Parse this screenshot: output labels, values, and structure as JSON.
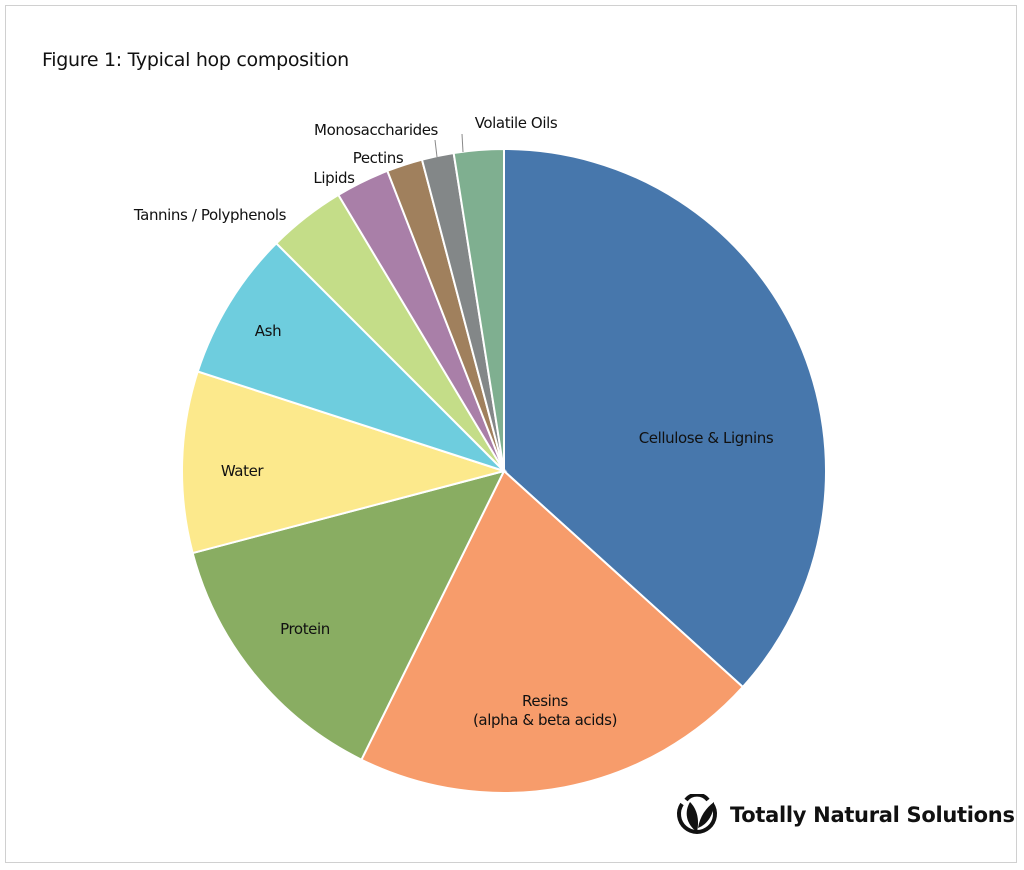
{
  "chart_data": {
    "type": "pie",
    "title": "Figure 1: Typical hop composition",
    "start_angle_deg": 0,
    "direction": "clockwise",
    "units": "percent (estimated)",
    "slices": [
      {
        "label": "Cellulose & Lignins",
        "value": 36.7,
        "color": "#4777AC"
      },
      {
        "label": "Resins",
        "sublabel": "(alpha & beta acids)",
        "value": 20.6,
        "color": "#F79C6B"
      },
      {
        "label": "Protein",
        "value": 13.6,
        "color": "#89AD62"
      },
      {
        "label": "Water",
        "value": 9.1,
        "color": "#FCE98C"
      },
      {
        "label": "Ash",
        "value": 7.5,
        "color": "#6ECDDE"
      },
      {
        "label": "Tannins / Polyphenols",
        "value": 3.9,
        "color": "#C4DD88"
      },
      {
        "label": "Lipids",
        "value": 2.7,
        "color": "#A97FA8"
      },
      {
        "label": "Pectins",
        "value": 1.8,
        "color": "#A0805D"
      },
      {
        "label": "Monosaccharides",
        "value": 1.6,
        "color": "#838788"
      },
      {
        "label": "Volatile Oils",
        "value": 2.5,
        "color": "#7FAF90"
      }
    ],
    "legend": "none (labels on/near slices)"
  },
  "brand": {
    "name": "Totally Natural Solutions",
    "icon": "leaf-logo-icon"
  }
}
